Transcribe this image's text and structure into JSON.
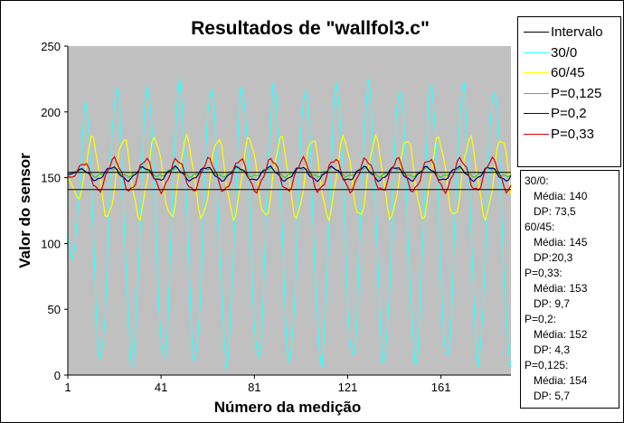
{
  "chart_data": {
    "type": "line",
    "title": "Resultados de \"wallfol3.c\"",
    "xlabel": "Número da medição",
    "ylabel": "Valor do sensor",
    "xlim": [
      1,
      191
    ],
    "ylim": [
      0,
      250
    ],
    "xticks": [
      1,
      41,
      81,
      121,
      161
    ],
    "yticks": [
      0,
      50,
      100,
      150,
      200,
      250
    ],
    "plot_background": "#c0c0c0",
    "grid": false,
    "legend_position": "right",
    "intervalo": {
      "name": "Intervalo",
      "color": "#000000",
      "values": [
        141,
        154
      ]
    },
    "series": [
      {
        "name": "30/0",
        "color": "#33ffff",
        "base": 115,
        "amplitude": 105,
        "period": 13.5,
        "phase": 5,
        "noise": 6
      },
      {
        "name": "60/45",
        "color": "#ffff00",
        "base": 150,
        "amplitude": 30,
        "period": 13.5,
        "phase": 8,
        "noise": 3
      },
      {
        "name": "P=0,125",
        "color": "#33cc33",
        "base": 154,
        "amplitude": 3,
        "period": 13.5,
        "phase": 3,
        "noise": 1
      },
      {
        "name": "P=0,2",
        "color": "#000080",
        "base": 153,
        "amplitude": 5,
        "period": 13.5,
        "phase": 3,
        "noise": 1
      },
      {
        "name": "P=0,33",
        "color": "#dd0000",
        "base": 152,
        "amplitude": 12,
        "period": 13.5,
        "phase": 4,
        "noise": 2
      }
    ],
    "stats": [
      {
        "label": "30/0:",
        "media": "Média: 140",
        "dp": "DP: 73,5"
      },
      {
        "label": "60/45:",
        "media": "Média: 145",
        "dp": "DP:20,3"
      },
      {
        "label": "P=0,33:",
        "media": "Média: 153",
        "dp": "DP: 9,7"
      },
      {
        "label": "P=0,2:",
        "media": "Média: 152",
        "dp": "DP: 4,3"
      },
      {
        "label": "P=0,125:",
        "media": "Média: 154",
        "dp": "DP: 5,7"
      }
    ]
  }
}
